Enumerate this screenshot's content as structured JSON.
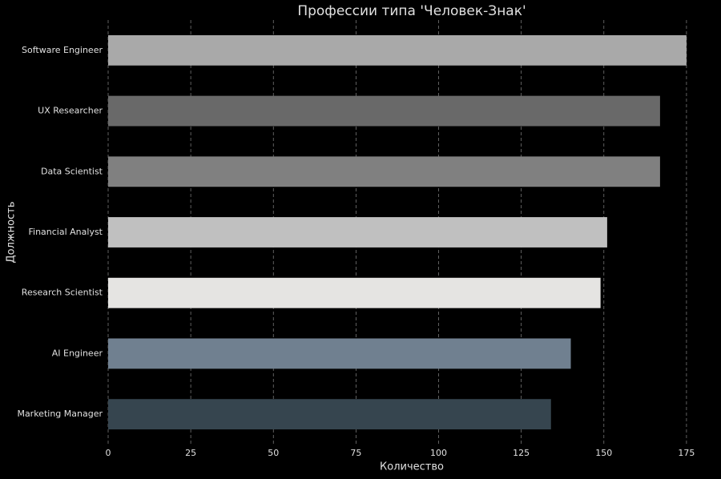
{
  "chart_data": {
    "type": "barh",
    "title": "Профессии типа 'Человек-Знак'",
    "xlabel": "Количество",
    "ylabel": "Должность",
    "categories": [
      "Software Engineer",
      "UX Researcher",
      "Data Scientist",
      "Financial Analyst",
      "Research Scientist",
      "AI Engineer",
      "Marketing Manager"
    ],
    "values": [
      175,
      167,
      167,
      151,
      149,
      140,
      134
    ],
    "colors": [
      "#a9a9a9",
      "#696969",
      "#808080",
      "#c0c0c0",
      "#e5e4e2",
      "#708090",
      "#36454f"
    ],
    "xlim": [
      0,
      183.75
    ],
    "xticks": [
      0,
      25,
      50,
      75,
      100,
      125,
      150,
      175
    ],
    "grid": true
  }
}
